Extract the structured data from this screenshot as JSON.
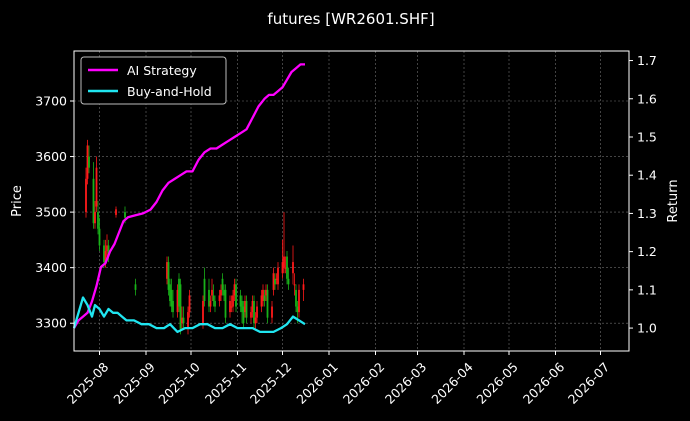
{
  "chart_data": {
    "type": "line",
    "title": "futures [WR2601.SHF]",
    "ylabel": "Price",
    "y2label": "Return",
    "x_ticks": [
      "2025-08",
      "2025-09",
      "2025-10",
      "2025-11",
      "2025-12",
      "2026-01",
      "2026-02",
      "2026-03",
      "2026-04",
      "2026-05",
      "2026-06",
      "2026-07"
    ],
    "xlim": [
      "2025-07-15",
      "2026-07-20"
    ],
    "ylim": [
      3250,
      3790
    ],
    "y_ticks": [
      3300,
      3400,
      3500,
      3600,
      3700
    ],
    "y2lim": [
      0.94,
      1.725
    ],
    "y2_ticks": [
      "1.0",
      "1.1",
      "1.2",
      "1.3",
      "1.4",
      "1.5",
      "1.6",
      "1.7"
    ],
    "y2_tick_values": [
      1.0,
      1.1,
      1.2,
      1.3,
      1.4,
      1.5,
      1.6,
      1.7
    ],
    "grid": true,
    "legend_position": "top-left",
    "colors": {
      "ai": "#ff00ff",
      "bh": "#20e5f0",
      "up": "#ff1a1a",
      "down": "#19b219",
      "grid": "#6e6e6e"
    },
    "series": [
      {
        "name": "AI Strategy",
        "axis": "right",
        "x": [
          "2025-07-15",
          "2025-07-18",
          "2025-07-21",
          "2025-07-24",
          "2025-07-27",
          "2025-07-30",
          "2025-08-02",
          "2025-08-05",
          "2025-08-08",
          "2025-08-11",
          "2025-08-14",
          "2025-08-17",
          "2025-08-20",
          "2025-08-25",
          "2025-08-30",
          "2025-09-04",
          "2025-09-08",
          "2025-09-12",
          "2025-09-16",
          "2025-09-20",
          "2025-09-24",
          "2025-09-28",
          "2025-10-02",
          "2025-10-06",
          "2025-10-10",
          "2025-10-14",
          "2025-10-18",
          "2025-10-22",
          "2025-10-26",
          "2025-10-30",
          "2025-11-03",
          "2025-11-07",
          "2025-11-11",
          "2025-11-15",
          "2025-11-19",
          "2025-11-22",
          "2025-11-25",
          "2025-11-28",
          "2025-12-01",
          "2025-12-04",
          "2025-12-07",
          "2025-12-10",
          "2025-12-13",
          "2025-12-16"
        ],
        "values": [
          1.0,
          1.02,
          1.03,
          1.04,
          1.07,
          1.11,
          1.16,
          1.17,
          1.2,
          1.22,
          1.25,
          1.28,
          1.29,
          1.295,
          1.3,
          1.31,
          1.33,
          1.36,
          1.38,
          1.39,
          1.4,
          1.41,
          1.41,
          1.44,
          1.46,
          1.47,
          1.47,
          1.48,
          1.49,
          1.5,
          1.51,
          1.52,
          1.55,
          1.58,
          1.6,
          1.61,
          1.61,
          1.62,
          1.63,
          1.65,
          1.67,
          1.68,
          1.69,
          1.69
        ]
      },
      {
        "name": "Buy-and-Hold",
        "axis": "right",
        "x": [
          "2025-07-15",
          "2025-07-18",
          "2025-07-21",
          "2025-07-24",
          "2025-07-27",
          "2025-07-29",
          "2025-08-01",
          "2025-08-04",
          "2025-08-07",
          "2025-08-10",
          "2025-08-13",
          "2025-08-16",
          "2025-08-19",
          "2025-08-24",
          "2025-08-29",
          "2025-09-03",
          "2025-09-08",
          "2025-09-13",
          "2025-09-17",
          "2025-09-22",
          "2025-09-27",
          "2025-10-02",
          "2025-10-07",
          "2025-10-12",
          "2025-10-17",
          "2025-10-22",
          "2025-10-27",
          "2025-11-01",
          "2025-11-06",
          "2025-11-11",
          "2025-11-16",
          "2025-11-20",
          "2025-11-25",
          "2025-11-30",
          "2025-12-04",
          "2025-12-08",
          "2025-12-12",
          "2025-12-16"
        ],
        "values": [
          1.0,
          1.04,
          1.08,
          1.06,
          1.03,
          1.06,
          1.05,
          1.03,
          1.05,
          1.04,
          1.04,
          1.03,
          1.02,
          1.02,
          1.01,
          1.01,
          1.0,
          1.0,
          1.01,
          0.99,
          1.0,
          1.0,
          1.01,
          1.01,
          1.0,
          1.0,
          1.01,
          1.0,
          1.0,
          1.0,
          0.99,
          0.99,
          0.99,
          1.0,
          1.01,
          1.03,
          1.02,
          1.01
        ]
      }
    ],
    "candles": {
      "axis": "left",
      "x": [
        "2025-07-23",
        "2025-07-24",
        "2025-07-25",
        "2025-07-28",
        "2025-07-29",
        "2025-07-30",
        "2025-07-31",
        "2025-08-01",
        "2025-08-04",
        "2025-08-05",
        "2025-08-06",
        "2025-08-07",
        "2025-08-12",
        "2025-08-18",
        "2025-08-25",
        "2025-09-15",
        "2025-09-16",
        "2025-09-17",
        "2025-09-18",
        "2025-09-19",
        "2025-09-22",
        "2025-09-23",
        "2025-09-24",
        "2025-09-25",
        "2025-09-26",
        "2025-09-29",
        "2025-09-30",
        "2025-10-09",
        "2025-10-10",
        "2025-10-13",
        "2025-10-14",
        "2025-10-15",
        "2025-10-16",
        "2025-10-17",
        "2025-10-20",
        "2025-10-21",
        "2025-10-22",
        "2025-10-23",
        "2025-10-24",
        "2025-10-27",
        "2025-10-28",
        "2025-10-29",
        "2025-10-30",
        "2025-10-31",
        "2025-11-03",
        "2025-11-04",
        "2025-11-05",
        "2025-11-06",
        "2025-11-07",
        "2025-11-10",
        "2025-11-11",
        "2025-11-12",
        "2025-11-13",
        "2025-11-14",
        "2025-11-17",
        "2025-11-18",
        "2025-11-19",
        "2025-11-20",
        "2025-11-21",
        "2025-11-24",
        "2025-11-25",
        "2025-11-26",
        "2025-11-27",
        "2025-11-28",
        "2025-12-01",
        "2025-12-02",
        "2025-12-03",
        "2025-12-04",
        "2025-12-05",
        "2025-12-08",
        "2025-12-09",
        "2025-12-10",
        "2025-12-11",
        "2025-12-12",
        "2025-12-15"
      ],
      "open": [
        3500,
        3560,
        3600,
        3560,
        3480,
        3510,
        3500,
        3470,
        3440,
        3410,
        3430,
        3440,
        3495,
        3500,
        3370,
        3380,
        3410,
        3370,
        3360,
        3340,
        3320,
        3380,
        3370,
        3300,
        3310,
        3290,
        3320,
        3300,
        3380,
        3360,
        3330,
        3350,
        3350,
        3340,
        3340,
        3350,
        3380,
        3360,
        3360,
        3320,
        3330,
        3330,
        3350,
        3370,
        3350,
        3340,
        3330,
        3320,
        3340,
        3310,
        3320,
        3340,
        3300,
        3310,
        3330,
        3340,
        3350,
        3350,
        3360,
        3310,
        3360,
        3380,
        3380,
        3370,
        3390,
        3400,
        3400,
        3420,
        3380,
        3390,
        3370,
        3360,
        3330,
        3320,
        3360
      ],
      "close": [
        3560,
        3620,
        3580,
        3480,
        3500,
        3580,
        3470,
        3440,
        3410,
        3430,
        3440,
        3420,
        3505,
        3490,
        3360,
        3410,
        3360,
        3340,
        3330,
        3320,
        3360,
        3330,
        3290,
        3310,
        3300,
        3320,
        3350,
        3340,
        3340,
        3330,
        3340,
        3360,
        3340,
        3330,
        3350,
        3360,
        3360,
        3350,
        3310,
        3340,
        3330,
        3350,
        3370,
        3330,
        3330,
        3320,
        3300,
        3340,
        3310,
        3320,
        3340,
        3300,
        3310,
        3330,
        3350,
        3360,
        3340,
        3360,
        3310,
        3330,
        3390,
        3370,
        3380,
        3400,
        3410,
        3420,
        3400,
        3380,
        3370,
        3410,
        3370,
        3330,
        3320,
        3360,
        3370
      ],
      "high": [
        3580,
        3630,
        3620,
        3590,
        3520,
        3600,
        3520,
        3490,
        3450,
        3450,
        3460,
        3450,
        3510,
        3510,
        3380,
        3420,
        3420,
        3380,
        3380,
        3360,
        3370,
        3390,
        3380,
        3330,
        3330,
        3330,
        3360,
        3350,
        3400,
        3380,
        3350,
        3380,
        3370,
        3350,
        3360,
        3370,
        3390,
        3370,
        3370,
        3350,
        3350,
        3360,
        3380,
        3380,
        3360,
        3350,
        3340,
        3350,
        3350,
        3330,
        3350,
        3350,
        3320,
        3340,
        3360,
        3370,
        3360,
        3370,
        3370,
        3340,
        3400,
        3390,
        3390,
        3410,
        3450,
        3500,
        3420,
        3430,
        3400,
        3440,
        3390,
        3370,
        3340,
        3370,
        3380
      ],
      "low": [
        3490,
        3550,
        3570,
        3470,
        3470,
        3500,
        3460,
        3430,
        3400,
        3400,
        3420,
        3410,
        3490,
        3480,
        3350,
        3370,
        3350,
        3330,
        3320,
        3310,
        3310,
        3320,
        3280,
        3290,
        3290,
        3280,
        3310,
        3290,
        3330,
        3320,
        3320,
        3340,
        3330,
        3320,
        3330,
        3340,
        3350,
        3340,
        3300,
        3310,
        3320,
        3320,
        3340,
        3320,
        3320,
        3300,
        3290,
        3310,
        3300,
        3300,
        3310,
        3290,
        3290,
        3300,
        3320,
        3330,
        3330,
        3340,
        3300,
        3300,
        3350,
        3360,
        3370,
        3360,
        3380,
        3390,
        3390,
        3370,
        3360,
        3370,
        3350,
        3320,
        3300,
        3310,
        3340
      ]
    }
  }
}
